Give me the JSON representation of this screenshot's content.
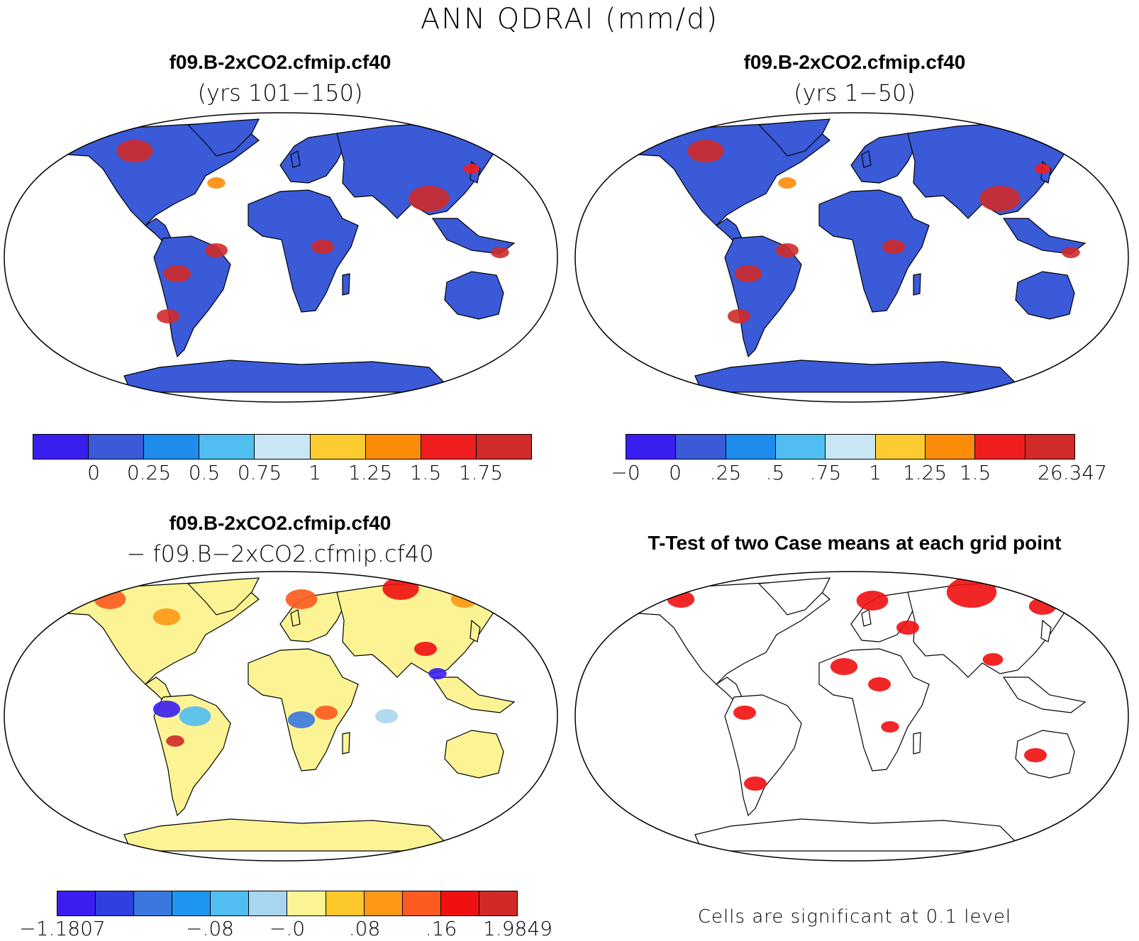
{
  "figure": {
    "title": "ANN QDRAI (mm/d)"
  },
  "colors": {
    "scale_main": [
      "#3a1ef0",
      "#3a5ad8",
      "#1e8cec",
      "#50bef0",
      "#c8e6f4",
      "#fccc30",
      "#fc8c0a",
      "#f01e1e",
      "#d02a2a"
    ],
    "scale_diff": [
      "#3a1ef0",
      "#2e40e0",
      "#3a78e0",
      "#1e96f0",
      "#50bef0",
      "#a8d6f0",
      "#fcf494",
      "#fcc82a",
      "#fc9814",
      "#fc5a1e",
      "#f01010",
      "#d22828"
    ],
    "ocean": "#ffffff",
    "significant": "#f01010"
  },
  "panels": [
    {
      "id": "top-left",
      "title": "f09.B-2xCO2.cfmip.cf40",
      "subtitle": "(yrs 101−150)",
      "land_fill": "#3a5ad8",
      "colorbar_ticks": [
        "0",
        "0.25",
        "0.5",
        "0.75",
        "1",
        "1.25",
        "1.5",
        "1.75"
      ]
    },
    {
      "id": "top-right",
      "title": "f09.B-2xCO2.cfmip.cf40",
      "subtitle": "(yrs 1−50)",
      "land_fill": "#3a5ad8",
      "colorbar_ticks": [
        "−0",
        "0",
        ".25",
        ".5",
        ".75",
        "1",
        "1.25",
        "1.5",
        "26.347"
      ]
    },
    {
      "id": "bottom-left",
      "title": "f09.B-2xCO2.cfmip.cf40",
      "subtitle": "− f09.B−2xCO2.cfmip.cf40",
      "land_fill": "#fcf494",
      "colorbar_ticks": [
        "−1.1807",
        "−.08",
        "−.0",
        ".08",
        ".16",
        "1.9849"
      ]
    },
    {
      "id": "bottom-right",
      "title": "T-Test of two Case means at each grid point",
      "subtitle": "",
      "land_fill": "#ffffff",
      "note": "Cells are significant at 0.1 level"
    }
  ]
}
